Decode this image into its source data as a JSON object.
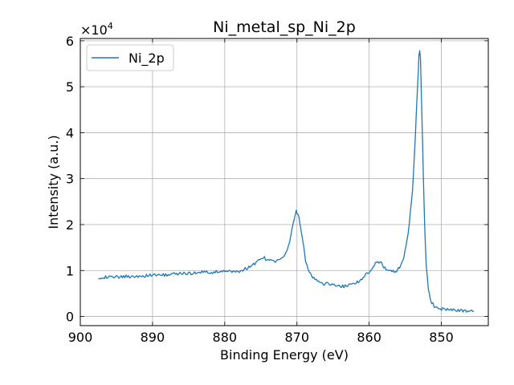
{
  "chart_data": {
    "type": "line",
    "title": "Ni_metal_sp_Ni_2p",
    "xlabel": "Binding Energy (eV)",
    "ylabel": "Intensity (a.u.)",
    "y_multiplier_label": "×10",
    "y_multiplier_exp": "4",
    "xlim": [
      900,
      843.5
    ],
    "ylim": [
      -0.2,
      6.05
    ],
    "x_reversed": true,
    "grid": true,
    "legend_position": "top-left",
    "x_ticks": [
      900,
      890,
      880,
      870,
      860,
      850
    ],
    "y_ticks": [
      0,
      1,
      2,
      3,
      4,
      5,
      6
    ],
    "series": [
      {
        "name": "Ni_2p",
        "color": "#1f77b4",
        "points": [
          [
            897.5,
            0.85
          ],
          [
            895,
            0.86
          ],
          [
            892,
            0.88
          ],
          [
            889,
            0.9
          ],
          [
            886,
            0.93
          ],
          [
            883,
            0.96
          ],
          [
            880,
            0.97
          ],
          [
            878,
            0.98
          ],
          [
            876.5,
            1.08
          ],
          [
            875,
            1.25
          ],
          [
            874.5,
            1.27
          ],
          [
            874,
            1.22
          ],
          [
            873,
            1.2
          ],
          [
            872,
            1.25
          ],
          [
            871,
            1.6
          ],
          [
            870.5,
            2.05
          ],
          [
            870.1,
            2.28
          ],
          [
            869.7,
            2.15
          ],
          [
            869.2,
            1.65
          ],
          [
            868.8,
            1.2
          ],
          [
            868.3,
            0.95
          ],
          [
            867.5,
            0.8
          ],
          [
            866.5,
            0.72
          ],
          [
            865,
            0.7
          ],
          [
            863.5,
            0.65
          ],
          [
            862,
            0.72
          ],
          [
            861,
            0.8
          ],
          [
            860,
            0.98
          ],
          [
            859.3,
            1.12
          ],
          [
            858.8,
            1.2
          ],
          [
            858.3,
            1.15
          ],
          [
            857.5,
            1.0
          ],
          [
            856.5,
            0.97
          ],
          [
            855.8,
            1.05
          ],
          [
            855.2,
            1.3
          ],
          [
            854.6,
            1.8
          ],
          [
            854.0,
            2.7
          ],
          [
            853.6,
            3.9
          ],
          [
            853.3,
            5.0
          ],
          [
            853.1,
            5.7
          ],
          [
            853.0,
            5.78
          ],
          [
            852.9,
            5.6
          ],
          [
            852.7,
            4.4
          ],
          [
            852.5,
            3.1
          ],
          [
            852.3,
            1.9
          ],
          [
            852.1,
            1.1
          ],
          [
            851.8,
            0.6
          ],
          [
            851.5,
            0.35
          ],
          [
            851.0,
            0.22
          ],
          [
            850.0,
            0.16
          ],
          [
            848.5,
            0.14
          ],
          [
            846.5,
            0.12
          ],
          [
            845.5,
            0.12
          ]
        ]
      }
    ]
  }
}
